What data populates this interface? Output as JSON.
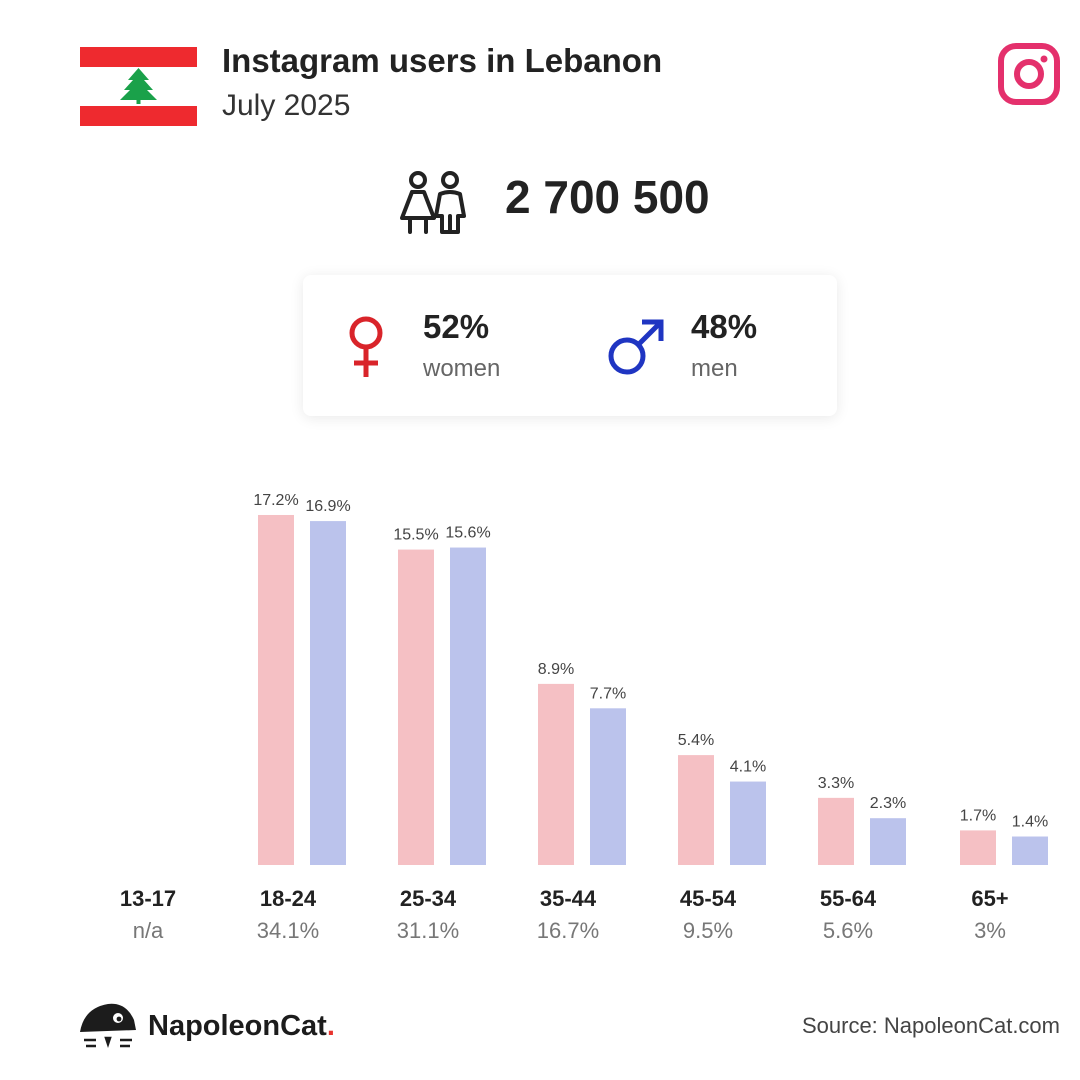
{
  "header": {
    "title": "Instagram users in Lebanon",
    "subtitle": "July 2025",
    "flag_icon": "lebanon-flag-icon",
    "platform_icon": "instagram-icon"
  },
  "total": {
    "icon": "people-icon",
    "value": "2 700 500"
  },
  "gender": {
    "women": {
      "percent": "52%",
      "label": "women",
      "icon": "female-symbol-icon",
      "color": "#d9242a"
    },
    "men": {
      "percent": "48%",
      "label": "men",
      "icon": "male-symbol-icon",
      "color": "#1f35c2"
    }
  },
  "chart_data": {
    "type": "bar",
    "categories": [
      "13-17",
      "18-24",
      "25-34",
      "35-44",
      "45-54",
      "55-64",
      "65+"
    ],
    "category_totals": [
      "n/a",
      "34.1%",
      "31.1%",
      "16.7%",
      "9.5%",
      "5.6%",
      "3%"
    ],
    "series": [
      {
        "color": "#f5c0c4",
        "values": [
          null,
          17.2,
          15.5,
          8.9,
          5.4,
          3.3,
          1.7
        ],
        "labels": [
          "",
          "17.2%",
          "15.5%",
          "8.9%",
          "5.4%",
          "3.3%",
          "1.7%"
        ]
      },
      {
        "color": "#bbc3ec",
        "values": [
          null,
          16.9,
          15.6,
          7.7,
          4.1,
          2.3,
          1.4
        ],
        "labels": [
          "",
          "16.9%",
          "15.6%",
          "7.7%",
          "4.1%",
          "2.3%",
          "1.4%"
        ]
      }
    ],
    "ylim": [
      0,
      18
    ],
    "grid": false,
    "legend": "none"
  },
  "footer": {
    "brand_name": "NapoleonCat",
    "brand_dot": ".",
    "source": "Source: NapoleonCat.com",
    "logo_icon": "napoleoncat-logo-icon"
  }
}
